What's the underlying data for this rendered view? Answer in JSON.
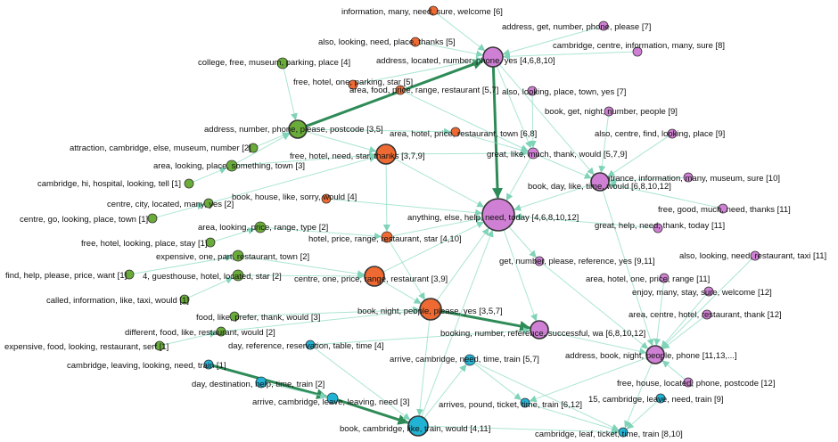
{
  "colors": {
    "green": "#6aac3a",
    "orange": "#ee6a32",
    "pink": "#cf80d4",
    "cyan": "#22b3d4",
    "edge": "#8fdcc4",
    "edge_strong": "#2e8b57"
  },
  "nodes": [
    {
      "id": "g1",
      "group": "green",
      "label": "college, free, museum, parking, place [4]"
    },
    {
      "id": "g2",
      "group": "green",
      "label": "address, number, phone, please, postcode [3,5]"
    },
    {
      "id": "g3",
      "group": "green",
      "label": "attraction, cambridge, else, museum, number [2]"
    },
    {
      "id": "g4",
      "group": "green",
      "label": "area, looking, place, something, town [3]"
    },
    {
      "id": "g5",
      "group": "green",
      "label": "cambridge, hi, hospital, looking, tell [1]"
    },
    {
      "id": "g6",
      "group": "green",
      "label": "centre, city, located, many, yes [2]"
    },
    {
      "id": "g7",
      "group": "green",
      "label": "centre, go, looking, place, town [1]"
    },
    {
      "id": "g8",
      "group": "green",
      "label": "area, looking, price, range, type [2]"
    },
    {
      "id": "g9",
      "group": "green",
      "label": "free, hotel, looking, place, stay [1]"
    },
    {
      "id": "g10",
      "group": "green",
      "label": "expensive, one, part, restaurant, town [2]"
    },
    {
      "id": "g11",
      "group": "green",
      "label": "find, help, please, price, want [1]"
    },
    {
      "id": "g12",
      "group": "green",
      "label": "4, guesthouse, hotel, located, star [2]"
    },
    {
      "id": "g13",
      "group": "green",
      "label": "called, information, like, taxi, would [1]"
    },
    {
      "id": "g14",
      "group": "green",
      "label": "food, like, prefer, thank, would [3]"
    },
    {
      "id": "g15",
      "group": "green",
      "label": "different, food, like, restaurant, would [2]"
    },
    {
      "id": "g16",
      "group": "green",
      "label": "expensive, food, looking, restaurant, serf [1]"
    },
    {
      "id": "o1",
      "group": "orange",
      "label": "information, many, need, sure, welcome [6]"
    },
    {
      "id": "o2",
      "group": "orange",
      "label": "also, looking, need, place, thanks [5]"
    },
    {
      "id": "o3",
      "group": "orange",
      "label": "free, hotel, one, parking, star [5]"
    },
    {
      "id": "o4",
      "group": "orange",
      "label": "area, food, price, range, restaurant [5,7]"
    },
    {
      "id": "o5",
      "group": "orange",
      "label": "area, hotel, price, restaurant, town [6,8]"
    },
    {
      "id": "o6",
      "group": "orange",
      "label": "free, hotel, need, star, thanks [3,7,9]"
    },
    {
      "id": "o7",
      "group": "orange",
      "label": "book, house, like, sorry, would [4]"
    },
    {
      "id": "o8",
      "group": "orange",
      "label": "hotel, price, range, restaurant, star [4,10]"
    },
    {
      "id": "o9",
      "group": "orange",
      "label": "centre, one, price, range, restaurant [3,9]"
    },
    {
      "id": "o10",
      "group": "orange",
      "label": "book, night, people, please, yes [3,5,7]"
    },
    {
      "id": "p1",
      "group": "pink",
      "label": "address, get, number, phone, please [7]"
    },
    {
      "id": "p2",
      "group": "pink",
      "label": "cambridge, centre, information, many, sure [8]"
    },
    {
      "id": "p3",
      "group": "pink",
      "label": "address, located, number, phone, yes [4,6,8,10]"
    },
    {
      "id": "p4",
      "group": "pink",
      "label": "also, looking, place, town, yes [7]"
    },
    {
      "id": "p5",
      "group": "pink",
      "label": "book, get, night, number, people [9]"
    },
    {
      "id": "p6",
      "group": "pink",
      "label": "also, centre, find, looking, place [9]"
    },
    {
      "id": "p7",
      "group": "pink",
      "label": "great, like, much, thank, would [5,7,9]"
    },
    {
      "id": "p8",
      "group": "pink",
      "label": "entrance, information, many, museum, sure [10]"
    },
    {
      "id": "p9",
      "group": "pink",
      "label": "book, day, like, time, would [6,8,10,12]"
    },
    {
      "id": "p10",
      "group": "pink",
      "label": "anything, else, help, need, today [4,6,8,10,12]"
    },
    {
      "id": "p11",
      "group": "pink",
      "label": "free, good, much, need, thanks [11]"
    },
    {
      "id": "p12",
      "group": "pink",
      "label": "great, help, need, thank, today [11]"
    },
    {
      "id": "p13",
      "group": "pink",
      "label": "also, looking, need, restaurant, taxi [11]"
    },
    {
      "id": "p14",
      "group": "pink",
      "label": "get, number, please, reference, yes [9,11]"
    },
    {
      "id": "p15",
      "group": "pink",
      "label": "area, hotel, one, price, range [11]"
    },
    {
      "id": "p16",
      "group": "pink",
      "label": "enjoy, many, stay, sure, welcome [12]"
    },
    {
      "id": "p17",
      "group": "pink",
      "label": "area, centre, hotel, restaurant, thank [12]"
    },
    {
      "id": "p18",
      "group": "pink",
      "label": "booking, number, reference, successful, wa [6,8,10,12]"
    },
    {
      "id": "p19",
      "group": "pink",
      "label": "address, book, night, people, phone [11,13,...]"
    },
    {
      "id": "p20",
      "group": "pink",
      "label": "free, house, located, phone, postcode [12]"
    },
    {
      "id": "c1",
      "group": "cyan",
      "label": "day, reference, reservation, table, time [4]"
    },
    {
      "id": "c2",
      "group": "cyan",
      "label": "arrive, cambridge, need, time, train [5,7]"
    },
    {
      "id": "c3",
      "group": "cyan",
      "label": "cambridge, leaving, looking, need, train [1]"
    },
    {
      "id": "c4",
      "group": "cyan",
      "label": "day, destination, help, time, train [2]"
    },
    {
      "id": "c5",
      "group": "cyan",
      "label": "arrive, cambridge, leave, leaving, need [3]"
    },
    {
      "id": "c6",
      "group": "cyan",
      "label": "arrives, pound, ticket, time, train [6,12]"
    },
    {
      "id": "c7",
      "group": "cyan",
      "label": "15, cambridge, leave, need, train [9]"
    },
    {
      "id": "c8",
      "group": "cyan",
      "label": "book, cambridge, like, train, would [4,11]"
    },
    {
      "id": "c9",
      "group": "cyan",
      "label": "cambridge, leaf, ticket, time, train [8,10]"
    }
  ],
  "edges": [
    {
      "from": "g2",
      "to": "p3",
      "strong": true
    },
    {
      "from": "p3",
      "to": "p10",
      "strong": true
    },
    {
      "from": "o10",
      "to": "p18",
      "strong": true
    },
    {
      "from": "c3",
      "to": "c5",
      "strong": true
    },
    {
      "from": "c5",
      "to": "c8",
      "strong": true
    },
    {
      "from": "g1",
      "to": "g2",
      "strong": false
    },
    {
      "from": "g2",
      "to": "o6",
      "strong": false
    },
    {
      "from": "g2",
      "to": "o5",
      "strong": false
    },
    {
      "from": "g3",
      "to": "g2",
      "strong": false
    },
    {
      "from": "g4",
      "to": "g2",
      "strong": false
    },
    {
      "from": "g4",
      "to": "o6",
      "strong": false
    },
    {
      "from": "g5",
      "to": "g4",
      "strong": false
    },
    {
      "from": "g6",
      "to": "o6",
      "strong": false
    },
    {
      "from": "g7",
      "to": "g6",
      "strong": false
    },
    {
      "from": "g8",
      "to": "o8",
      "strong": false
    },
    {
      "from": "g9",
      "to": "g8",
      "strong": false
    },
    {
      "from": "g10",
      "to": "o9",
      "strong": false
    },
    {
      "from": "g11",
      "to": "g10",
      "strong": false
    },
    {
      "from": "g12",
      "to": "o9",
      "strong": false
    },
    {
      "from": "g13",
      "to": "g12",
      "strong": false
    },
    {
      "from": "g14",
      "to": "o10",
      "strong": false
    },
    {
      "from": "g15",
      "to": "o10",
      "strong": false
    },
    {
      "from": "g16",
      "to": "g15",
      "strong": false
    },
    {
      "from": "o1",
      "to": "p3",
      "strong": false
    },
    {
      "from": "o2",
      "to": "p3",
      "strong": false
    },
    {
      "from": "o3",
      "to": "p3",
      "strong": false
    },
    {
      "from": "o4",
      "to": "p7",
      "strong": false
    },
    {
      "from": "o5",
      "to": "p7",
      "strong": false
    },
    {
      "from": "o6",
      "to": "p10",
      "strong": false
    },
    {
      "from": "o6",
      "to": "o8",
      "strong": false
    },
    {
      "from": "o6",
      "to": "p7",
      "strong": false
    },
    {
      "from": "o7",
      "to": "p10",
      "strong": false
    },
    {
      "from": "o8",
      "to": "p10",
      "strong": false
    },
    {
      "from": "o9",
      "to": "o10",
      "strong": false
    },
    {
      "from": "o9",
      "to": "p10",
      "strong": false
    },
    {
      "from": "o10",
      "to": "p10",
      "strong": false
    },
    {
      "from": "o10",
      "to": "c8",
      "strong": false
    },
    {
      "from": "p1",
      "to": "p3",
      "strong": false
    },
    {
      "from": "p2",
      "to": "p3",
      "strong": false
    },
    {
      "from": "p4",
      "to": "p7",
      "strong": false
    },
    {
      "from": "p3",
      "to": "p7",
      "strong": false
    },
    {
      "from": "p3",
      "to": "p9",
      "strong": false
    },
    {
      "from": "p5",
      "to": "p9",
      "strong": false
    },
    {
      "from": "p6",
      "to": "p9",
      "strong": false
    },
    {
      "from": "p7",
      "to": "p10",
      "strong": false
    },
    {
      "from": "p7",
      "to": "p9",
      "strong": false
    },
    {
      "from": "p8",
      "to": "p9",
      "strong": false
    },
    {
      "from": "p9",
      "to": "p10",
      "strong": false
    },
    {
      "from": "p9",
      "to": "p19",
      "strong": false
    },
    {
      "from": "p11",
      "to": "p9",
      "strong": false
    },
    {
      "from": "p12",
      "to": "p10",
      "strong": false
    },
    {
      "from": "p13",
      "to": "p19",
      "strong": false
    },
    {
      "from": "p14",
      "to": "p19",
      "strong": false
    },
    {
      "from": "p15",
      "to": "p19",
      "strong": false
    },
    {
      "from": "p16",
      "to": "p19",
      "strong": false
    },
    {
      "from": "p17",
      "to": "p19",
      "strong": false
    },
    {
      "from": "p18",
      "to": "p19",
      "strong": false
    },
    {
      "from": "p20",
      "to": "p19",
      "strong": false
    },
    {
      "from": "p10",
      "to": "p18",
      "strong": false
    },
    {
      "from": "p10",
      "to": "p14",
      "strong": false
    },
    {
      "from": "c1",
      "to": "c8",
      "strong": false
    },
    {
      "from": "c1",
      "to": "p18",
      "strong": false
    },
    {
      "from": "c2",
      "to": "c6",
      "strong": false
    },
    {
      "from": "c2",
      "to": "c9",
      "strong": false
    },
    {
      "from": "c4",
      "to": "c5",
      "strong": false
    },
    {
      "from": "c6",
      "to": "c9",
      "strong": false
    },
    {
      "from": "c7",
      "to": "c9",
      "strong": false
    },
    {
      "from": "c8",
      "to": "c2",
      "strong": false
    },
    {
      "from": "c8",
      "to": "p10",
      "strong": false
    },
    {
      "from": "c8",
      "to": "c9",
      "strong": false
    },
    {
      "from": "p19",
      "to": "c9",
      "strong": false
    },
    {
      "from": "p19",
      "to": "c6",
      "strong": false
    },
    {
      "from": "o8",
      "to": "o10",
      "strong": false
    }
  ]
}
